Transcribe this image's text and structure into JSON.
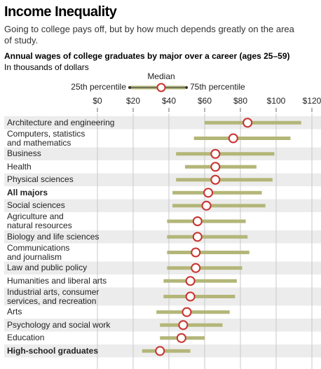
{
  "chart_data": {
    "type": "range_dot",
    "title": "Income Inequality",
    "subtitle": "Going to college pays off, but by how much depends greatly on the area of study.",
    "chart_title": "Annual wages of college graduates by major over a career (ages 25–59)",
    "unit_label": "In thousands of dollars",
    "categories": [
      "Architecture and engineering",
      "Computers, statistics\nand mathematics",
      "Business",
      "Health",
      "Physical sciences",
      "All majors",
      "Social sciences",
      "Agriculture and\nnatural resources",
      "Biology and life sciences",
      "Communications\nand journalism",
      "Law and public policy",
      "Humanities and liberal arts",
      "Industrial arts, consumer\nservices, and recreation",
      "Arts",
      "Psychology and social work",
      "Education",
      "High-school graduates"
    ],
    "emphasis": [
      false,
      false,
      false,
      false,
      false,
      true,
      false,
      false,
      false,
      false,
      false,
      false,
      false,
      false,
      false,
      false,
      true
    ],
    "series": [
      {
        "name": "25th percentile",
        "color": "#b3b678",
        "values": [
          60,
          54,
          44,
          49,
          44,
          42,
          42,
          39,
          39,
          39,
          39,
          37,
          37,
          33,
          35,
          35,
          25
        ]
      },
      {
        "name": "Median",
        "color": "#c8322f",
        "values": [
          84,
          76,
          66,
          66,
          66,
          62,
          61,
          56,
          56,
          55,
          55,
          52,
          52,
          50,
          48,
          47,
          35
        ]
      },
      {
        "name": "75th percentile",
        "color": "#b3b678",
        "values": [
          114,
          108,
          99,
          89,
          98,
          92,
          94,
          83,
          84,
          85,
          81,
          78,
          77,
          74,
          70,
          60,
          52
        ]
      }
    ],
    "xlim": [
      0,
      120
    ],
    "xticks": [
      {
        "value": 0,
        "label": "$0"
      },
      {
        "value": 20,
        "label": "$20"
      },
      {
        "value": 40,
        "label": "$40"
      },
      {
        "value": 60,
        "label": "$60"
      },
      {
        "value": 80,
        "label": "$80"
      },
      {
        "value": 100,
        "label": "$100"
      },
      {
        "value": 120,
        "label": "$120"
      }
    ],
    "grid": true
  }
}
